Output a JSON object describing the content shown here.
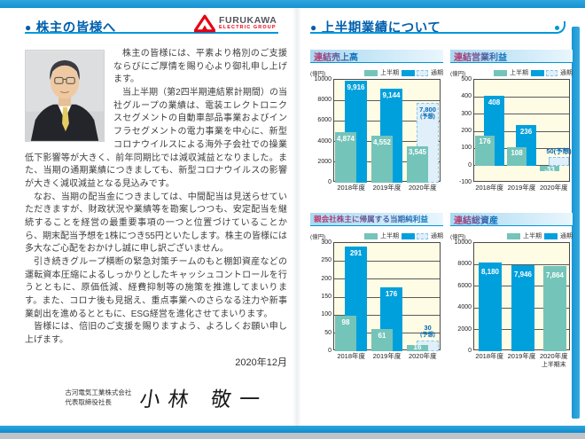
{
  "left_page": {
    "header": {
      "title": "株主の皆様へ"
    },
    "logo": {
      "brand": "FURUKAWA",
      "sub": "ELECTRIC GROUP"
    },
    "paragraphs": [
      "株主の皆様には、平素より格別のご支援ならびにご厚情を賜り心より御礼申し上げます。",
      "当上半期（第2四半期連結累計期間）の当社グループの業績は、電装エレクトロニクスセグメントの自動車部品事業およびインフラセグメントの電力事業を中心に、新型コロナウイルスによる海外子会社での操業低下影響等が大きく、前年同期比では減収減益となりました。また、当期の通期業績につきましても、新型コロナウイルスの影響が大きく減収減益となる見込みです。",
      "なお、当期の配当金につきましては、中間配当は見送らせていただきますが、財政状況や業績等を勘案しつつも、安定配当を継続することを経営の最重要事項の一つと位置づけていることから、期末配当予想を1株につき55円といたします。株主の皆様には多大なご心配をおかけし誠に申し訳ございません。",
      "引き続きグループ横断の緊急対策チームのもと棚卸資産などの運転資本圧縮によるしっかりとしたキャッシュコントロールを行うとともに、原価低減、経費抑制等の施策を推進してまいります。また、コロナ後も見据え、重点事業へのさらなる注力や新事業創出を進めるとともに、ESG経営を進化させてまいります。",
      "皆様には、倍旧のご支援を賜りますよう、よろしくお願い申し上げます。"
    ],
    "date": "2020年12月",
    "signature": {
      "company": "古河電気工業株式会社",
      "title": "代表取締役社長",
      "name": "小林 敬一"
    }
  },
  "right_page": {
    "header": {
      "title": "上半期業績について"
    }
  },
  "chart_data": [
    {
      "type": "bar",
      "title": "連結売上高",
      "unit": "(億円)",
      "ylim": [
        0,
        10000
      ],
      "yticks": [
        0,
        2000,
        4000,
        6000,
        8000,
        10000
      ],
      "legend": {
        "h1": "上半期",
        "full": "通期",
        "forecast_swatch": true
      },
      "categories": [
        "2018年度",
        "2019年度",
        "2020年度"
      ],
      "groups": [
        {
          "label": "2018年度",
          "h1": 4874,
          "h1_label": "4,874",
          "full": 9916,
          "full_label": "9,916"
        },
        {
          "label": "2019年度",
          "h1": 4552,
          "h1_label": "4,552",
          "full": 9144,
          "full_label": "9,144"
        },
        {
          "label": "2020年度",
          "h1": 3545,
          "h1_label": "3,545",
          "forecast": 7800,
          "forecast_label": "7,800",
          "forecast_note": "(予想)",
          "forecast_label_pos": "inside"
        }
      ]
    },
    {
      "type": "bar",
      "title": "連結営業利益",
      "unit": "(億円)",
      "ylim": [
        -100,
        500
      ],
      "yticks": [
        -100,
        0,
        100,
        200,
        300,
        400,
        500
      ],
      "legend": {
        "h1": "上半期",
        "full": "通期",
        "forecast_swatch": true
      },
      "categories": [
        "2018年度",
        "2019年度",
        "2020年度"
      ],
      "groups": [
        {
          "label": "2018年度",
          "h1": 176,
          "h1_label": "176",
          "full": 408,
          "full_label": "408"
        },
        {
          "label": "2019年度",
          "h1": 108,
          "h1_label": "108",
          "full": 236,
          "full_label": "236"
        },
        {
          "label": "2020年度",
          "h1": -33,
          "h1_label": "-33",
          "forecast": 50,
          "forecast_label": "50(予想)",
          "forecast_label_pos": "above"
        }
      ]
    },
    {
      "type": "bar",
      "title": "親会社株主に帰属する当期純利益",
      "unit": "(億円)",
      "ylim": [
        0,
        300
      ],
      "yticks": [
        0,
        50,
        100,
        150,
        200,
        250,
        300
      ],
      "legend": {
        "h1": "上半期",
        "full": "通期",
        "forecast_swatch": true
      },
      "categories": [
        "2018年度",
        "2019年度",
        "2020年度"
      ],
      "groups": [
        {
          "label": "2018年度",
          "h1": 98,
          "h1_label": "98",
          "full": 291,
          "full_label": "291"
        },
        {
          "label": "2019年度",
          "h1": 61,
          "h1_label": "61",
          "full": 176,
          "full_label": "176"
        },
        {
          "label": "2020年度",
          "h1": 16,
          "h1_label": "16",
          "forecast": 30,
          "forecast_label": "30",
          "forecast_note": "(予想)",
          "forecast_label_pos": "above"
        }
      ]
    },
    {
      "type": "bar",
      "title": "連結総資産",
      "unit": "(億円)",
      "ylim": [
        0,
        10000
      ],
      "yticks": [
        0,
        2000,
        4000,
        6000,
        8000,
        10000
      ],
      "legend": {
        "h1": "上半期",
        "full": "通期",
        "forecast_swatch": false
      },
      "categories": [
        "2018年度",
        "2019年度",
        "2020年度 上半期末"
      ],
      "bars": [
        {
          "label": "2018年度",
          "value": 8180,
          "value_label": "8,180",
          "series": "full"
        },
        {
          "label": "2019年度",
          "value": 7946,
          "value_label": "7,946",
          "series": "full"
        },
        {
          "label": "2020年度",
          "label2": "上半期末",
          "value": 7864,
          "value_label": "7,864",
          "series": "h1"
        }
      ]
    }
  ],
  "colors": {
    "accent_blue": "#0097d8",
    "header_text": "#0060ae",
    "bar_half_year": "#74c4ba",
    "bar_full_year": "#00a0dd",
    "forecast_fill": "#e0effa",
    "forecast_border": "#85c5e9",
    "plot_background": "#fffce5",
    "logo_red": "#e60012"
  }
}
